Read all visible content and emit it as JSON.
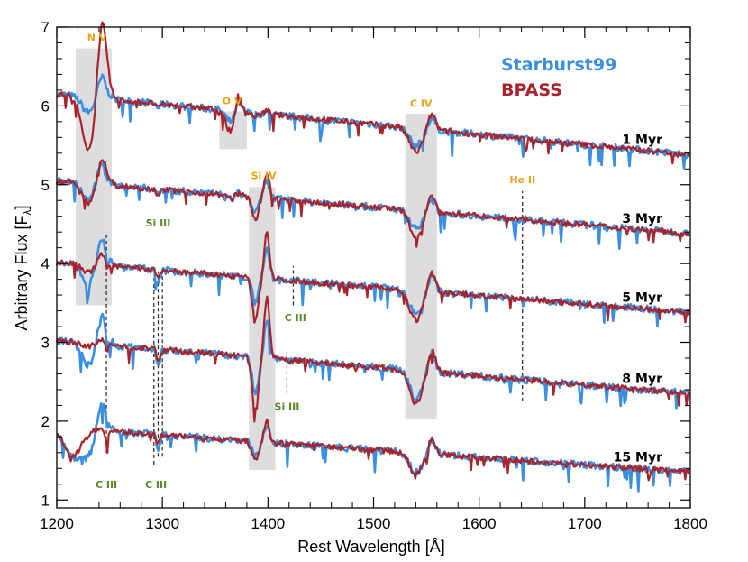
{
  "chart_data": {
    "type": "line",
    "title": "",
    "xlabel": "Rest Wavelength [Å]",
    "ylabel": "Arbitrary Flux [F",
    "ylabel_sub": "λ",
    "ylabel_close": "]",
    "xlim": [
      1200,
      1800
    ],
    "ylim": [
      0.9,
      7.0
    ],
    "x_ticks": [
      1200,
      1300,
      1400,
      1500,
      1600,
      1700,
      1800
    ],
    "x_tick_labels": [
      "1200",
      "1300",
      "1400",
      "1500",
      "1600",
      "1700",
      "1800"
    ],
    "y_ticks": [
      1,
      2,
      3,
      4,
      5,
      6,
      7
    ],
    "y_tick_labels": [
      "1",
      "2",
      "3",
      "4",
      "5",
      "6",
      "7"
    ],
    "legend": {
      "position": "top-right",
      "entries": [
        {
          "name": "Starburst99",
          "color": "#3a8fe0"
        },
        {
          "name": "BPASS",
          "color": "#a8232a"
        }
      ]
    },
    "colors": {
      "starburst99": "#3a8fe0",
      "bpass": "#a8232a",
      "ion_orange": "#e8a317",
      "ion_green": "#5a8a2a",
      "band_fill": "#dddddd"
    },
    "series": [
      {
        "age": "1 Myr",
        "start": 6.15,
        "end": 5.38
      },
      {
        "age": "3 Myr",
        "start": 5.05,
        "end": 4.38
      },
      {
        "age": "5 Myr",
        "start": 4.02,
        "end": 3.38
      },
      {
        "age": "8 Myr",
        "start": 3.02,
        "end": 2.35
      },
      {
        "age": "15 Myr",
        "start": 1.92,
        "end": 1.35
      }
    ],
    "shaded_regions": [
      {
        "name": "N V",
        "x": [
          1218,
          1252
        ],
        "y": [
          3.47,
          6.73
        ]
      },
      {
        "name": "O V",
        "x": [
          1354,
          1380
        ],
        "y": [
          5.45,
          5.93
        ]
      },
      {
        "name": "Si IV",
        "x": [
          1382,
          1407
        ],
        "y": [
          1.38,
          4.97
        ]
      },
      {
        "name": "C IV",
        "x": [
          1530,
          1560
        ],
        "y": [
          2.02,
          5.9
        ]
      }
    ],
    "dashed_lines": [
      {
        "x": 1247,
        "y": [
          1.6,
          4.38
        ]
      },
      {
        "x": 1292,
        "y": [
          1.45,
          3.85
        ]
      },
      {
        "x": 1296,
        "y": [
          1.55,
          3.9
        ]
      },
      {
        "x": 1300,
        "y": [
          1.55,
          3.9
        ]
      },
      {
        "x": 1424,
        "y": [
          3.47,
          3.97
        ]
      },
      {
        "x": 1418,
        "y": [
          2.35,
          2.92
        ]
      },
      {
        "x": 1641,
        "y": [
          2.25,
          4.92
        ]
      }
    ],
    "annotations": [
      {
        "text": "N V",
        "x": 1238,
        "y": 6.82,
        "color": "orange"
      },
      {
        "text": "O V",
        "x": 1366,
        "y": 6.02,
        "color": "orange"
      },
      {
        "text": "Si IV",
        "x": 1396,
        "y": 5.07,
        "color": "orange"
      },
      {
        "text": "C IV",
        "x": 1545,
        "y": 5.99,
        "color": "orange"
      },
      {
        "text": "He II",
        "x": 1641,
        "y": 5.02,
        "color": "orange"
      },
      {
        "text": "Si  III",
        "x": 1296,
        "y": 4.47,
        "color": "green"
      },
      {
        "text": "C III",
        "x": 1426,
        "y": 3.27,
        "color": "green"
      },
      {
        "text": "Si III",
        "x": 1418,
        "y": 2.14,
        "color": "green"
      },
      {
        "text": "C  III",
        "x": 1247,
        "y": 1.15,
        "color": "green"
      },
      {
        "text": "C  III",
        "x": 1294,
        "y": 1.15,
        "color": "green"
      }
    ]
  }
}
